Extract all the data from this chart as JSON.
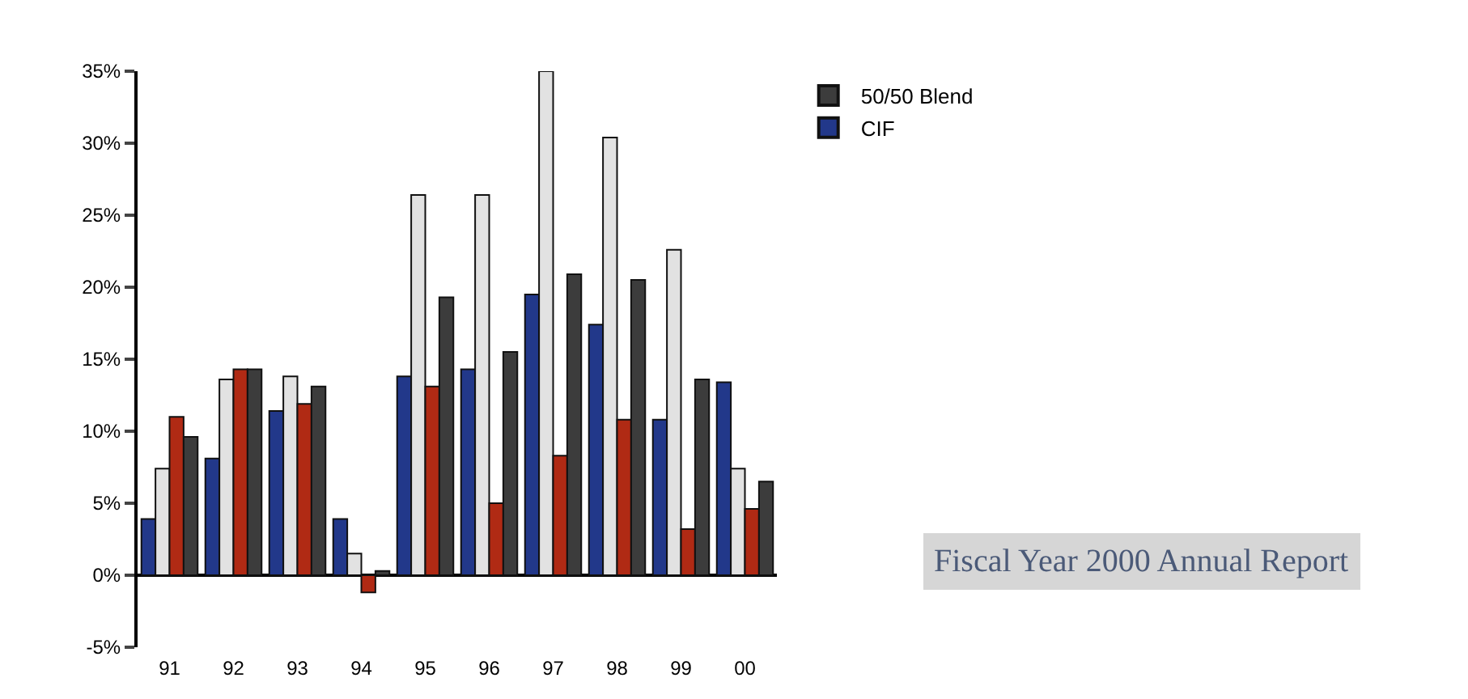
{
  "chart_data": {
    "type": "bar",
    "categories": [
      "91",
      "92",
      "93",
      "94",
      "95",
      "96",
      "97",
      "98",
      "99",
      "00"
    ],
    "series": [
      {
        "name": "CIF",
        "color": "#22388a",
        "values": [
          3.9,
          8.1,
          11.4,
          3.9,
          13.8,
          14.3,
          19.5,
          17.4,
          10.8,
          13.4
        ]
      },
      {
        "color": "#e2e2e2",
        "values": [
          7.4,
          13.6,
          13.8,
          1.5,
          26.4,
          26.4,
          35,
          30.4,
          22.6,
          7.4
        ]
      },
      {
        "color": "#b02a14",
        "values": [
          11.0,
          14.3,
          11.9,
          -1.2,
          13.1,
          5.0,
          8.3,
          10.8,
          3.2,
          4.6
        ]
      },
      {
        "name": "50/50 Blend",
        "color": "#3c3c3c",
        "values": [
          9.6,
          14.3,
          13.1,
          0.3,
          19.3,
          15.5,
          20.9,
          20.5,
          13.6,
          6.5
        ]
      }
    ],
    "ylim": [
      -5,
      35
    ],
    "yticks": [
      {
        "value": -5,
        "label": "-5%"
      },
      {
        "value": 0,
        "label": "0%"
      },
      {
        "value": 5,
        "label": "5%"
      },
      {
        "value": 10,
        "label": "10%"
      },
      {
        "value": 15,
        "label": "15%"
      },
      {
        "value": 20,
        "label": "20%"
      },
      {
        "value": 25,
        "label": "25%"
      },
      {
        "value": 30,
        "label": "30%"
      },
      {
        "value": 35,
        "label": "35%"
      }
    ],
    "legend": "top right",
    "annotations": [
      "Fiscal Year 2000 Annual Report"
    ]
  }
}
